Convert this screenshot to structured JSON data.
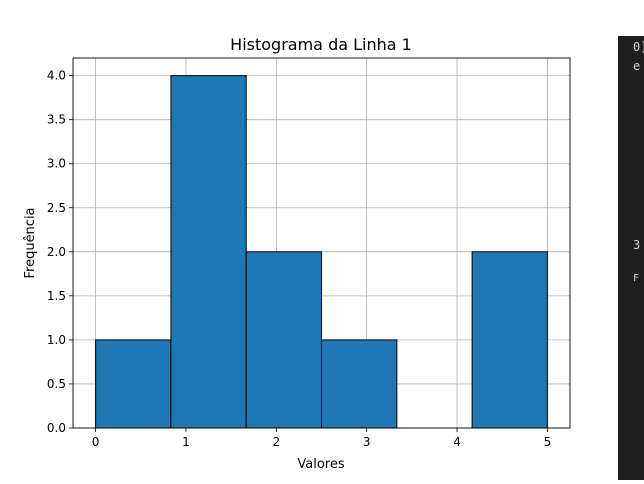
{
  "chart_data": {
    "type": "bar",
    "title": "Histograma da Linha 1",
    "xlabel": "Valores",
    "ylabel": "Frequência",
    "bins": [
      {
        "start": 0.0,
        "end": 0.8333,
        "count": 1
      },
      {
        "start": 0.8333,
        "end": 1.6667,
        "count": 4
      },
      {
        "start": 1.6667,
        "end": 2.5,
        "count": 2
      },
      {
        "start": 2.5,
        "end": 3.3333,
        "count": 1
      },
      {
        "start": 3.3333,
        "end": 4.1667,
        "count": 0
      },
      {
        "start": 4.1667,
        "end": 5.0,
        "count": 2
      }
    ],
    "xlim": [
      -0.25,
      5.25
    ],
    "ylim": [
      0,
      4.2
    ],
    "xticks": [
      "0",
      "1",
      "2",
      "3",
      "4",
      "5"
    ],
    "yticks": [
      "0.0",
      "0.5",
      "1.0",
      "1.5",
      "2.0",
      "2.5",
      "3.0",
      "3.5",
      "4.0"
    ],
    "grid": true,
    "bar_color": "#1f77b4",
    "edge_color": "#000000"
  },
  "terminal": {
    "fragments": [
      "0]",
      "e",
      "3",
      "F"
    ]
  }
}
